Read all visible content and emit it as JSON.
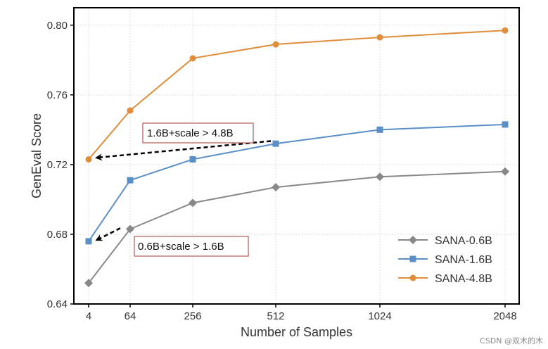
{
  "chart_data": {
    "type": "line",
    "title": "",
    "xlabel": "Number of Samples",
    "ylabel": "GenEval Score",
    "x_categories": [
      "4",
      "64",
      "256",
      "512",
      "1024",
      "2048"
    ],
    "ylim": [
      0.64,
      0.81
    ],
    "yticks": [
      "0.64",
      "0.68",
      "0.72",
      "0.76",
      "0.80"
    ],
    "grid": true,
    "legend_position": "bottom-right",
    "series": [
      {
        "name": "SANA-0.6B",
        "marker": "diamond",
        "color": "#888888",
        "values": [
          0.652,
          0.683,
          0.698,
          0.707,
          0.713,
          0.716
        ]
      },
      {
        "name": "SANA-1.6B",
        "marker": "square",
        "color": "#5b8fc7",
        "values": [
          0.676,
          0.711,
          0.723,
          0.732,
          0.74,
          0.743
        ]
      },
      {
        "name": "SANA-4.8B",
        "marker": "circle",
        "color": "#e08e3c",
        "values": [
          0.723,
          0.751,
          0.781,
          0.789,
          0.793,
          0.797
        ]
      }
    ],
    "annotations": [
      {
        "text": "1.6B+scale > 4.8B",
        "from": {
          "x": "512",
          "y": 0.7335
        },
        "to": {
          "x": "4",
          "y": 0.724
        }
      },
      {
        "text": "0.6B+scale > 1.6B",
        "from": {
          "x": "64",
          "y": 0.6835
        },
        "to": {
          "x": "4",
          "y": 0.677
        }
      }
    ]
  },
  "watermark": "CSDN @双木的木"
}
